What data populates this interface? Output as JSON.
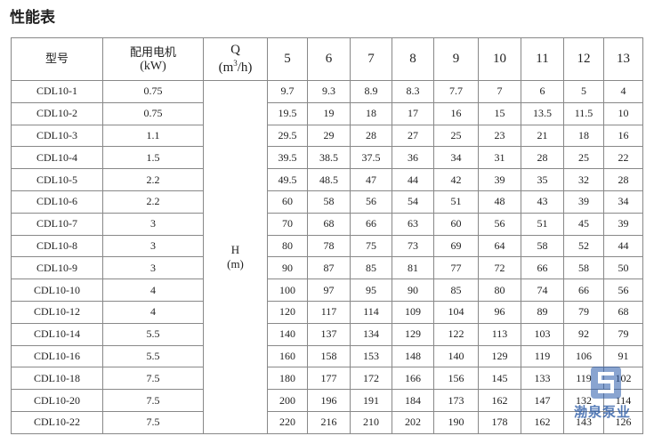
{
  "title": "性能表",
  "table": {
    "header": {
      "model": "型号",
      "power": [
        "配用电机",
        "(kW)"
      ],
      "flow": {
        "symbol": "Q",
        "unit_pre": "(m",
        "unit_sup": "3",
        "unit_post": "/h)"
      },
      "flows": [
        "5",
        "6",
        "7",
        "8",
        "9",
        "10",
        "11",
        "12",
        "13"
      ]
    },
    "head_label": {
      "symbol": "H",
      "unit": "(m)"
    },
    "rows": [
      [
        "CDL10-1",
        "0.75",
        "9.7",
        "9.3",
        "8.9",
        "8.3",
        "7.7",
        "7",
        "6",
        "5",
        "4"
      ],
      [
        "CDL10-2",
        "0.75",
        "19.5",
        "19",
        "18",
        "17",
        "16",
        "15",
        "13.5",
        "11.5",
        "10"
      ],
      [
        "CDL10-3",
        "1.1",
        "29.5",
        "29",
        "28",
        "27",
        "25",
        "23",
        "21",
        "18",
        "16"
      ],
      [
        "CDL10-4",
        "1.5",
        "39.5",
        "38.5",
        "37.5",
        "36",
        "34",
        "31",
        "28",
        "25",
        "22"
      ],
      [
        "CDL10-5",
        "2.2",
        "49.5",
        "48.5",
        "47",
        "44",
        "42",
        "39",
        "35",
        "32",
        "28"
      ],
      [
        "CDL10-6",
        "2.2",
        "60",
        "58",
        "56",
        "54",
        "51",
        "48",
        "43",
        "39",
        "34"
      ],
      [
        "CDL10-7",
        "3",
        "70",
        "68",
        "66",
        "63",
        "60",
        "56",
        "51",
        "45",
        "39"
      ],
      [
        "CDL10-8",
        "3",
        "80",
        "78",
        "75",
        "73",
        "69",
        "64",
        "58",
        "52",
        "44"
      ],
      [
        "CDL10-9",
        "3",
        "90",
        "87",
        "85",
        "81",
        "77",
        "72",
        "66",
        "58",
        "50"
      ],
      [
        "CDL10-10",
        "4",
        "100",
        "97",
        "95",
        "90",
        "85",
        "80",
        "74",
        "66",
        "56"
      ],
      [
        "CDL10-12",
        "4",
        "120",
        "117",
        "114",
        "109",
        "104",
        "96",
        "89",
        "79",
        "68"
      ],
      [
        "CDL10-14",
        "5.5",
        "140",
        "137",
        "134",
        "129",
        "122",
        "113",
        "103",
        "92",
        "79"
      ],
      [
        "CDL10-16",
        "5.5",
        "160",
        "158",
        "153",
        "148",
        "140",
        "129",
        "119",
        "106",
        "91"
      ],
      [
        "CDL10-18",
        "7.5",
        "180",
        "177",
        "172",
        "166",
        "156",
        "145",
        "133",
        "119",
        "102"
      ],
      [
        "CDL10-20",
        "7.5",
        "200",
        "196",
        "191",
        "184",
        "173",
        "162",
        "147",
        "132",
        "114"
      ],
      [
        "CDL10-22",
        "7.5",
        "220",
        "216",
        "210",
        "202",
        "190",
        "178",
        "162",
        "143",
        "126"
      ]
    ]
  },
  "watermark": "渤泉泵业"
}
